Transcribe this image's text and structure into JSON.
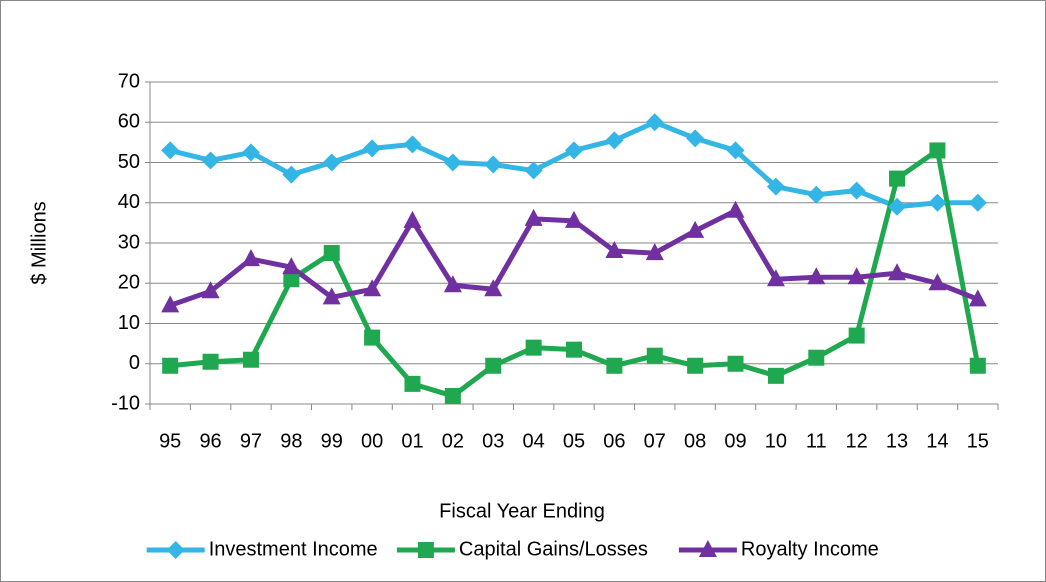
{
  "chart_data": {
    "type": "line",
    "x_label": "Fiscal Year Ending",
    "y_label": "$ Millions",
    "categories": [
      "95",
      "96",
      "97",
      "98",
      "99",
      "00",
      "01",
      "02",
      "03",
      "04",
      "05",
      "06",
      "07",
      "08",
      "09",
      "10",
      "11",
      "12",
      "13",
      "14",
      "15"
    ],
    "series": [
      {
        "name": "Investment Income",
        "color": "#33b5e5",
        "marker": "diamond",
        "values": [
          53,
          50.5,
          52.5,
          47,
          50,
          53.5,
          54.5,
          50,
          49.5,
          48,
          53,
          55.5,
          60,
          56,
          53,
          44,
          42,
          43,
          39,
          40,
          40
        ]
      },
      {
        "name": "Capital Gains/Losses",
        "color": "#1fa84f",
        "marker": "square",
        "values": [
          -0.5,
          0.5,
          1,
          21,
          27.5,
          6.5,
          -5,
          -8,
          -0.5,
          4,
          3.5,
          -0.5,
          2,
          -0.5,
          0,
          -3,
          1.5,
          7,
          46,
          53,
          -0.5
        ]
      },
      {
        "name": "Royalty Income",
        "color": "#7030a0",
        "marker": "triangle",
        "values": [
          14.5,
          18,
          26,
          24,
          16.5,
          18.5,
          35.5,
          19.5,
          18.5,
          36,
          35.5,
          28,
          27.5,
          33,
          38,
          21,
          21.5,
          21.5,
          22.5,
          20,
          16
        ]
      }
    ],
    "ylim": [
      -10,
      70
    ],
    "yticks": [
      -10,
      0,
      10,
      20,
      30,
      40,
      50,
      60,
      70
    ],
    "grid": true,
    "legend": "bottom"
  }
}
